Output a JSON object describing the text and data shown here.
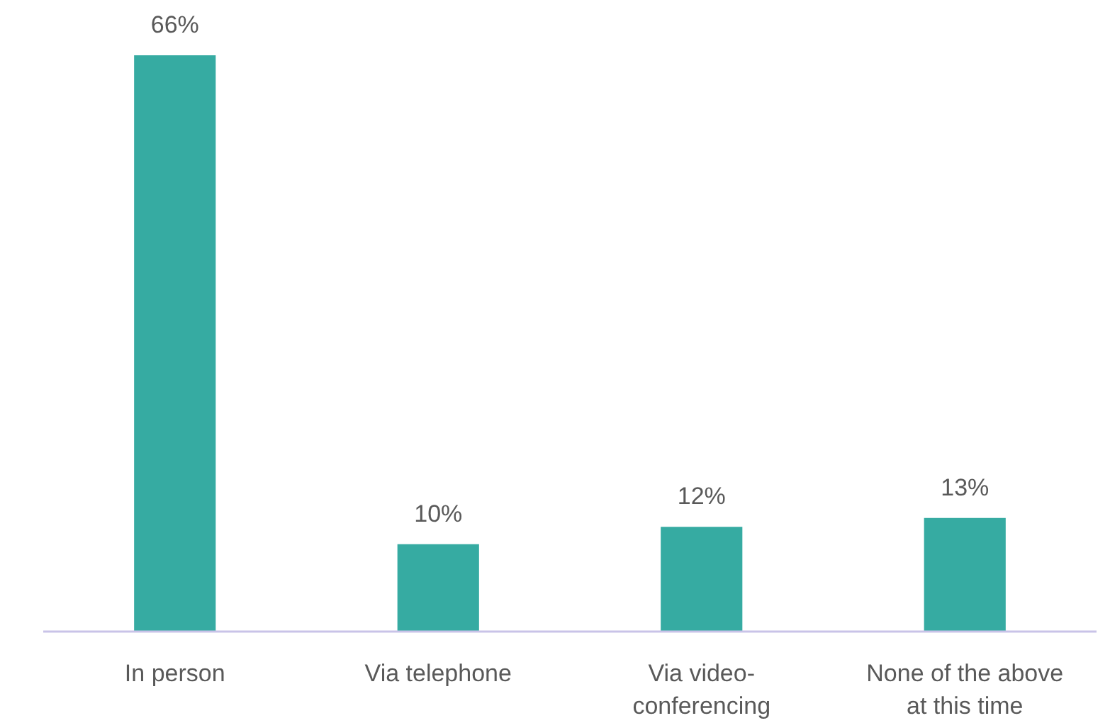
{
  "chart_data": {
    "type": "bar",
    "categories": [
      "In person",
      "Via telephone",
      "Via video-\nconferencing",
      "None of the above\nat this time"
    ],
    "values": [
      66,
      10,
      12,
      13
    ],
    "value_labels": [
      "66%",
      "10%",
      "12%",
      "13%"
    ],
    "color": "#36aba2"
  }
}
